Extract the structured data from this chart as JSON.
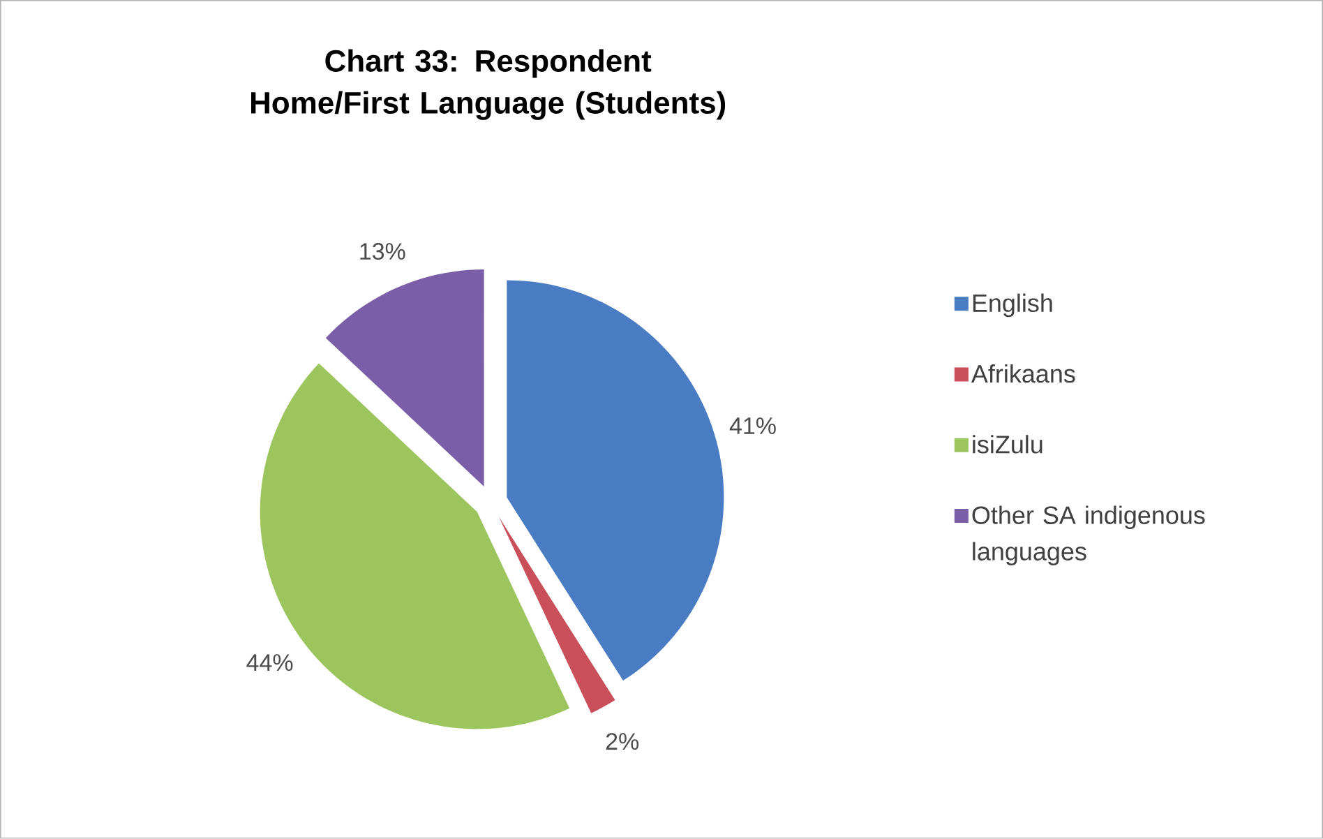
{
  "chart_data": {
    "type": "pie",
    "title": "Chart 33: Respondent Home/First Language (Students)",
    "categories": [
      "English",
      "Afrikaans",
      "isiZulu",
      "Other SA indigenous languages"
    ],
    "values": [
      41,
      2,
      44,
      13
    ],
    "value_labels": [
      "41%",
      "2%",
      "44%",
      "13%"
    ],
    "colors": [
      "#4a7cc4",
      "#c9505a",
      "#9dc55e",
      "#7b5ea8"
    ],
    "legend": "right"
  }
}
